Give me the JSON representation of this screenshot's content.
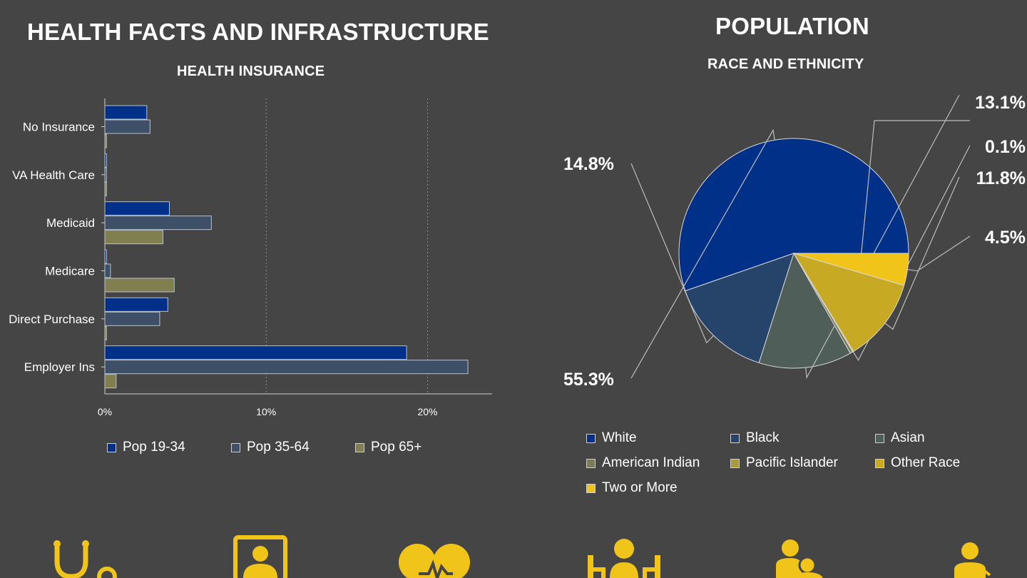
{
  "left": {
    "title": "HEALTH FACTS AND INFRASTRUCTURE",
    "subtitle": "HEALTH INSURANCE"
  },
  "right": {
    "title": "POPULATION",
    "subtitle": "RACE AND ETHNICITY"
  },
  "chart_data": [
    {
      "type": "bar",
      "orientation": "horizontal",
      "title": "HEALTH INSURANCE",
      "categories": [
        "No Insurance",
        "VA Health Care",
        "Medicaid",
        "Medicare",
        "Direct Purchase",
        "Employer Ins"
      ],
      "series": [
        {
          "name": "Pop 19-34",
          "color": "#003087",
          "values": [
            2.6,
            0.1,
            4.0,
            0.1,
            3.9,
            18.7
          ]
        },
        {
          "name": "Pop 35-64",
          "color": "#3d5068",
          "values": [
            2.8,
            0.1,
            6.6,
            0.35,
            3.4,
            22.5
          ]
        },
        {
          "name": "Pop 65+",
          "color": "#7f7f50",
          "values": [
            0.1,
            0.1,
            3.6,
            4.3,
            0.1,
            0.7
          ]
        }
      ],
      "xlim": [
        0,
        24
      ],
      "xticks": [
        0,
        10,
        20
      ],
      "xtick_labels": [
        "0%",
        "10%",
        "20%"
      ],
      "grid": "vertical-dotted",
      "legend": "bottom"
    },
    {
      "type": "pie",
      "title": "RACE AND ETHNICITY",
      "slices": [
        {
          "name": "White",
          "value": 55.3,
          "color": "#003087",
          "label": "55.3%"
        },
        {
          "name": "Black",
          "value": 14.8,
          "color": "#26446a",
          "label": "14.8%"
        },
        {
          "name": "Asian",
          "value": 13.1,
          "color": "#505e5a",
          "label": "13.1%"
        },
        {
          "name": "American Indian",
          "value": 0.4,
          "color": "#7c7c5a",
          "label": ""
        },
        {
          "name": "Pacific Islander",
          "value": 0.1,
          "color": "#a89a38",
          "label": "0.1%"
        },
        {
          "name": "Other Race",
          "value": 11.8,
          "color": "#c8a923",
          "label": "11.8%"
        },
        {
          "name": "Two or More",
          "value": 4.5,
          "color": "#f0c419",
          "label": "4.5%"
        }
      ],
      "legend": "bottom"
    }
  ],
  "icons": {
    "color": "#f0c419",
    "items": [
      "stethoscope-icon",
      "doctor-screen-icon",
      "heart-pulse-icon",
      "group-meeting-icon",
      "parent-child-icon",
      "person-icon"
    ]
  }
}
